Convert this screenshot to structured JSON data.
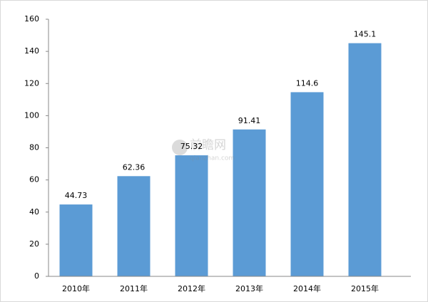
{
  "chart_data": {
    "type": "bar",
    "categories": [
      "2010年",
      "2011年",
      "2012年",
      "2013年",
      "2014年",
      "2015年"
    ],
    "values": [
      44.73,
      62.36,
      75.32,
      91.41,
      114.6,
      145.1
    ],
    "color": "#5b9bd5",
    "ylim": [
      0,
      160
    ],
    "yticks": [
      0,
      20,
      40,
      60,
      80,
      100,
      120,
      140,
      160
    ],
    "grid": false,
    "watermark": {
      "name": "前瞻网",
      "url": "qianzhan.com"
    }
  }
}
